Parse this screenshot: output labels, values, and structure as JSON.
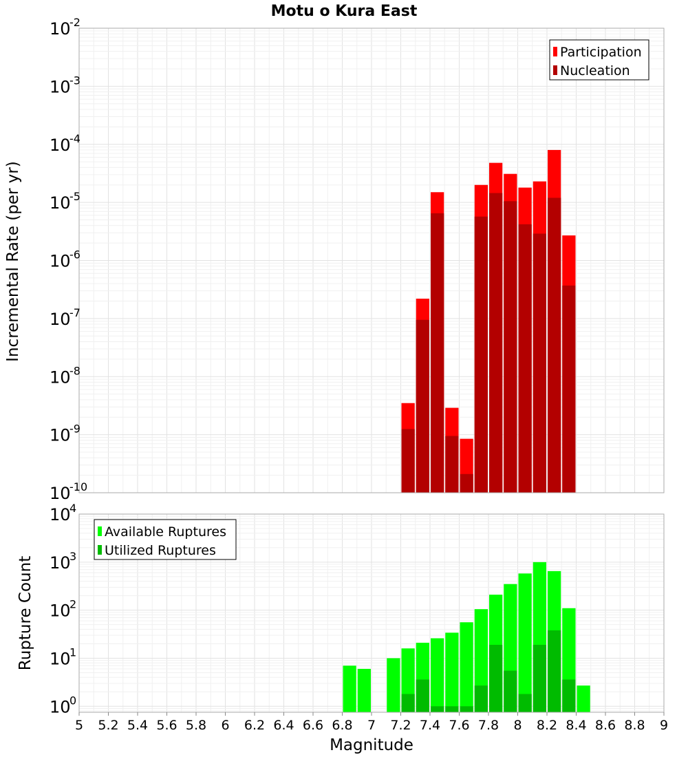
{
  "title": "Motu o Kura East",
  "chart_data": [
    {
      "type": "bar",
      "ylabel": "Incremental Rate (per yr)",
      "yscale": "log",
      "ylim": [
        1e-10,
        0.01
      ],
      "xlim": [
        5,
        9
      ],
      "grid": true,
      "legend_position": "top-right",
      "y_tick_exponents": [
        "-2",
        "-3",
        "-4",
        "-5",
        "-6",
        "-7",
        "-8",
        "-9",
        "-10"
      ],
      "x": [
        7.25,
        7.35,
        7.45,
        7.55,
        7.65,
        7.75,
        7.85,
        7.95,
        8.05,
        8.15,
        8.25,
        8.35
      ],
      "series": [
        {
          "name": "Participation",
          "color": "#ff0000",
          "values": [
            3.5e-09,
            2.2e-07,
            1.5e-05,
            2.9e-09,
            8.5e-10,
            2e-05,
            4.8e-05,
            3.1e-05,
            1.8e-05,
            2.3e-05,
            8e-05,
            2.7e-06
          ]
        },
        {
          "name": "Nucleation",
          "color": "#b30000",
          "values": [
            1.25e-09,
            9.5e-08,
            6.5e-06,
            9.5e-10,
            2.1e-10,
            5.7e-06,
            1.45e-05,
            1.05e-05,
            4.2e-06,
            2.9e-06,
            1.2e-05,
            3.7e-07
          ]
        }
      ]
    },
    {
      "type": "bar",
      "xlabel": "Magnitude",
      "ylabel": "Rupture Count",
      "yscale": "log",
      "ylim": [
        0.75,
        10000.0
      ],
      "xlim": [
        5,
        9
      ],
      "grid": true,
      "legend_position": "top-left",
      "y_tick_exponents": [
        "4",
        "3",
        "2",
        "1",
        "0"
      ],
      "x_ticks": [
        "5",
        "5.2",
        "5.4",
        "5.6",
        "5.8",
        "6",
        "6.2",
        "6.4",
        "6.6",
        "6.8",
        "7",
        "7.2",
        "7.4",
        "7.6",
        "7.8",
        "8",
        "8.2",
        "8.4",
        "8.6",
        "8.8",
        "9"
      ],
      "series": [
        {
          "name": "Available Ruptures",
          "color": "#00ff00",
          "x": [
            6.85,
            6.95,
            7.15,
            7.25,
            7.35,
            7.45,
            7.55,
            7.65,
            7.75,
            7.85,
            7.95,
            8.05,
            8.15,
            8.25,
            8.35,
            8.45
          ],
          "values": [
            7,
            6,
            10,
            16,
            21,
            26,
            34,
            56,
            105,
            210,
            350,
            580,
            1000,
            650,
            110,
            2.7
          ]
        },
        {
          "name": "Utilized Ruptures",
          "color": "#00bb00",
          "x": [
            7.25,
            7.35,
            7.45,
            7.55,
            7.65,
            7.75,
            7.85,
            7.95,
            8.05,
            8.15,
            8.25,
            8.35
          ],
          "values": [
            1.8,
            3.6,
            1,
            1,
            1,
            2.7,
            19,
            5.5,
            1.8,
            19,
            38,
            3.6
          ]
        }
      ]
    }
  ]
}
